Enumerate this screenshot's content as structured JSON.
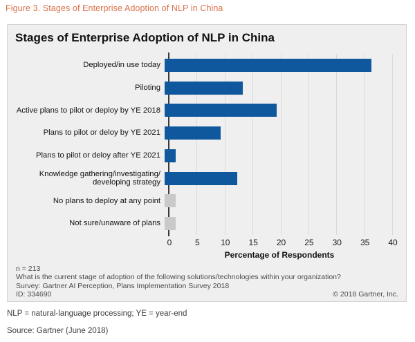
{
  "figure_caption": "Figure 3. Stages of Enterprise Adoption of NLP in China",
  "chart": {
    "title": "Stages of Enterprise Adoption of NLP in China",
    "xlabel": "Percentage of Respondents"
  },
  "chart_data": {
    "type": "bar",
    "orientation": "horizontal",
    "title": "Stages of Enterprise Adoption of NLP in China",
    "xlabel": "Percentage of Respondents",
    "categories": [
      "Deployed/in use today",
      "Piloting",
      "Active plans to pilot or deploy by YE 2018",
      "Plans to pilot or deloy by YE 2021",
      "Plans to pilot or deloy after YE 2021",
      "Knowledge gathering/investigating/\ndeveloping strategy",
      "No plans to deploy at any point",
      "Not sure/unaware of plans"
    ],
    "values": [
      37,
      14,
      20,
      10,
      2,
      13,
      2,
      2
    ],
    "bar_colors": [
      "#10589E",
      "#10589E",
      "#10589E",
      "#10589E",
      "#10589E",
      "#10589E",
      "#C9C9C9",
      "#C9C9C9"
    ],
    "xticks": [
      0,
      5,
      10,
      15,
      20,
      25,
      30,
      35,
      40
    ],
    "xlim": [
      0,
      42
    ],
    "grid": "vertical",
    "legend": "none",
    "colors": {
      "bar_primary": "#10589E",
      "bar_muted": "#C9C9C9",
      "caption_orange": "#D9714A"
    }
  },
  "footer": {
    "n": "n = 213",
    "question": "What is the current stage of adoption of the following solutions/technologies within your organization?",
    "survey": "Survey: Gartner AI Perception, Plans Implementation Survey 2018",
    "id": "ID: 334690",
    "copyright": "© 2018 Gartner, Inc."
  },
  "notes": {
    "abbreviations": "NLP = natural-language processing; YE = year-end",
    "source": "Source: Gartner (June 2018)"
  }
}
